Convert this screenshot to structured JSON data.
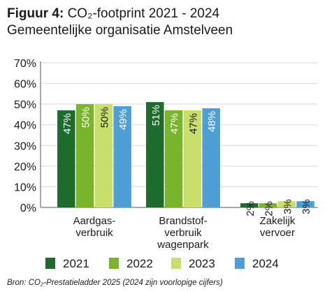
{
  "title": {
    "prefix": "Figuur 4:",
    "main": "CO₂-footprint 2021 - 2024",
    "line2": "Gemeentelijke organisatie Amstelveen"
  },
  "source": "Bron: CO₂-Prestatieladder 2025 (2024 zijn voorlopige cijfers)",
  "colors": {
    "2021": "#1e6b2e",
    "2022": "#79b42a",
    "2023": "#c9de6b",
    "2024": "#4d9fd6",
    "grid": "#d9d9d9",
    "axis": "#555555"
  },
  "chart_data": {
    "type": "bar",
    "categories": [
      [
        "Aardgas-",
        "verbruik"
      ],
      [
        "Brandstof-",
        "verbruik",
        "wagenpark"
      ],
      [
        "Zakelijk",
        "vervoer"
      ]
    ],
    "series": [
      {
        "name": "2021",
        "values": [
          47,
          51,
          2
        ],
        "labels": [
          "47%",
          "51%",
          "2%"
        ]
      },
      {
        "name": "2022",
        "values": [
          50,
          47,
          2
        ],
        "labels": [
          "50%",
          "47%",
          "2%"
        ]
      },
      {
        "name": "2023",
        "values": [
          50,
          47,
          3
        ],
        "labels": [
          "50%",
          "47%",
          "3%"
        ]
      },
      {
        "name": "2024",
        "values": [
          49,
          48,
          3
        ],
        "labels": [
          "49%",
          "48%",
          "3%"
        ]
      }
    ],
    "yticks": [
      "0%",
      "10%",
      "20%",
      "30%",
      "40%",
      "50%",
      "60%",
      "70%"
    ],
    "ylim": [
      0,
      70
    ],
    "grid": true,
    "legend_position": "bottom",
    "data_labels": "inside-rotated"
  }
}
